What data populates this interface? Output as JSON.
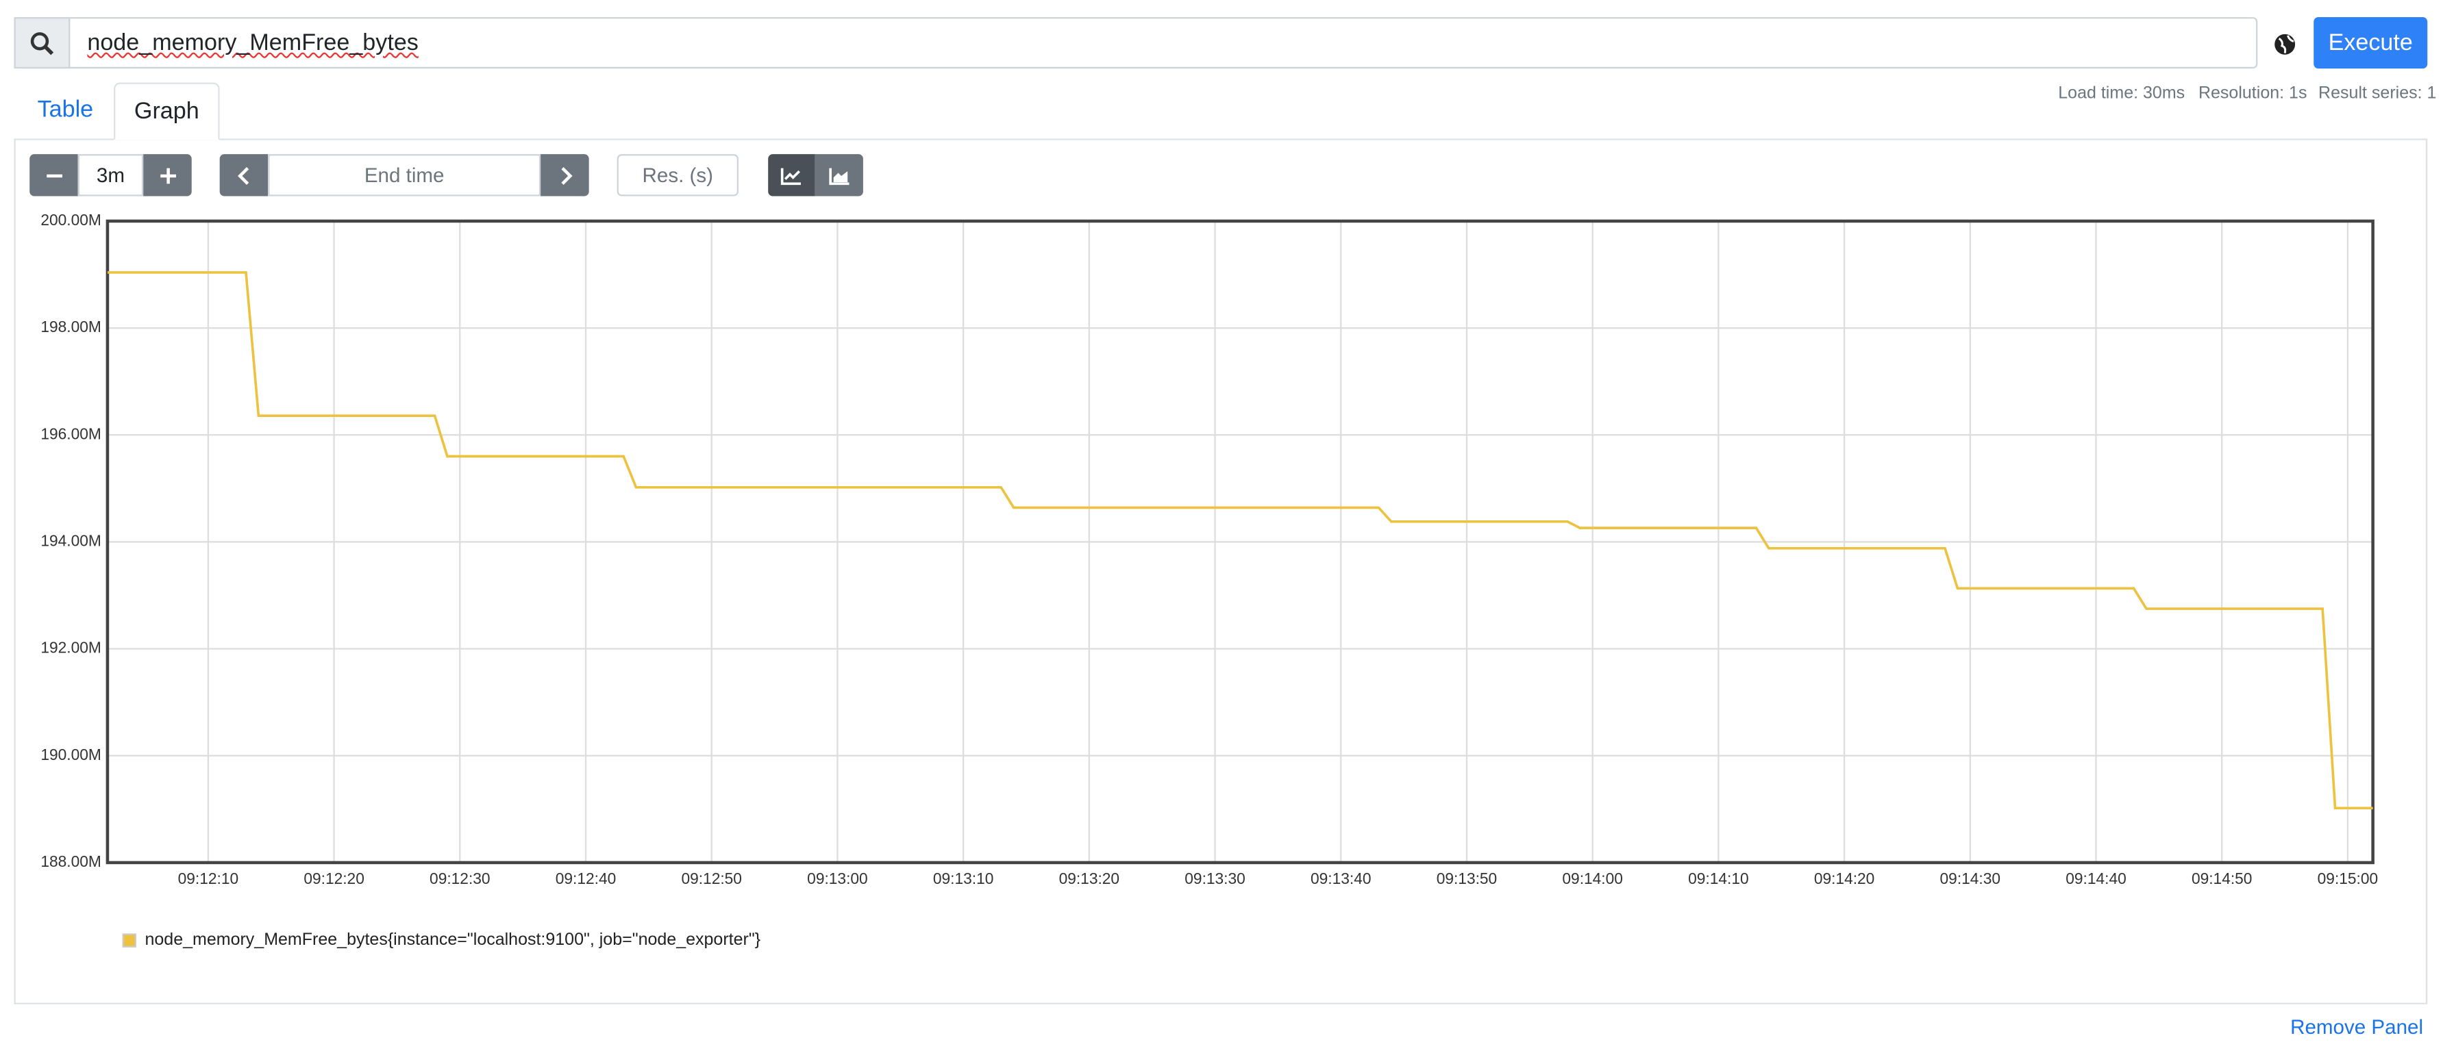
{
  "query": "node_memory_MemFree_bytes",
  "execute_button": "Execute",
  "tabs": [
    "Table",
    "Graph"
  ],
  "stats": [
    "Load time: 30ms",
    "Resolution: 1s",
    "Result series: 1"
  ],
  "controls": {
    "range": "3m",
    "end_time_placeholder": "End time",
    "resolution_placeholder": "Res. (s)"
  },
  "remove_panel": "Remove Panel",
  "chart_data": {
    "type": "line",
    "x": [
      "09:12:02",
      "09:12:13",
      "09:12:14",
      "09:12:28",
      "09:12:29",
      "09:12:43",
      "09:12:44",
      "09:13:13",
      "09:13:14",
      "09:13:43",
      "09:13:44",
      "09:13:58",
      "09:13:59",
      "09:14:13",
      "09:14:14",
      "09:14:28",
      "09:14:29",
      "09:14:43",
      "09:14:44",
      "09:14:58",
      "09:14:59",
      "09:15:02"
    ],
    "series": [
      {
        "name": "node_memory_MemFree_bytes{instance=\"localhost:9100\", job=\"node_exporter\"}",
        "color": "#edc240",
        "values": [
          199.04,
          199.04,
          196.36,
          196.36,
          195.6,
          195.6,
          195.02,
          195.02,
          194.64,
          194.64,
          194.38,
          194.38,
          194.26,
          194.26,
          193.88,
          193.88,
          193.13,
          193.13,
          192.75,
          192.75,
          189.02,
          189.02
        ]
      }
    ],
    "xlim": [
      "09:12:02",
      "09:15:02"
    ],
    "xticks": [
      "09:12:10",
      "09:12:20",
      "09:12:30",
      "09:12:40",
      "09:12:50",
      "09:13:00",
      "09:13:10",
      "09:13:20",
      "09:13:30",
      "09:13:40",
      "09:13:50",
      "09:14:00",
      "09:14:10",
      "09:14:20",
      "09:14:30",
      "09:14:40",
      "09:14:50",
      "09:15:00"
    ],
    "ylim": [
      188,
      200
    ],
    "yticks": [
      {
        "value": 188,
        "label": "188.00M"
      },
      {
        "value": 190,
        "label": "190.00M"
      },
      {
        "value": 192,
        "label": "192.00M"
      },
      {
        "value": 194,
        "label": "194.00M"
      },
      {
        "value": 196,
        "label": "196.00M"
      },
      {
        "value": 198,
        "label": "198.00M"
      },
      {
        "value": 200,
        "label": "200.00M"
      }
    ],
    "grid": true
  }
}
